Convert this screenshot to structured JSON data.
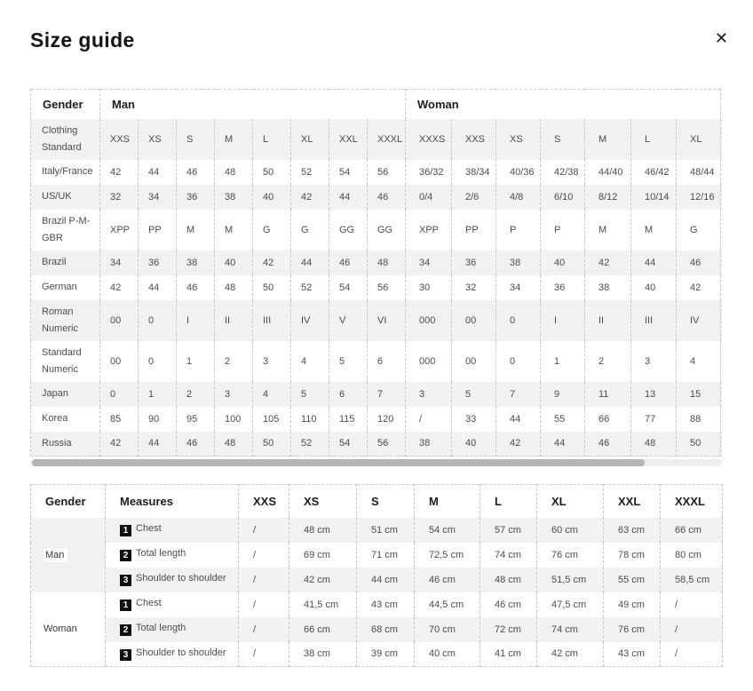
{
  "colors": {
    "row_shade": "#f1f1f1",
    "table_border": "#c9c9c9",
    "scrollbar_thumb": "#b5b5b5",
    "scrollbar_track": "#ededed",
    "badge_bg": "#111111",
    "text_primary": "#1d1d1d",
    "text_secondary": "#4c4c4c"
  },
  "modal": {
    "title": "Size guide",
    "close_icon": "✕"
  },
  "size_table": {
    "gender_header": "Gender",
    "man_header": "Man",
    "woman_header": "Woman",
    "standard_row_label": "Clothing Standard",
    "man_sizes": [
      "XXS",
      "XS",
      "S",
      "M",
      "L",
      "XL",
      "XXL",
      "XXXL"
    ],
    "woman_sizes": [
      "XXXS",
      "XXS",
      "XS",
      "S",
      "M",
      "L",
      "XL"
    ],
    "rows": [
      {
        "label": "Italy/France",
        "man": [
          "42",
          "44",
          "46",
          "48",
          "50",
          "52",
          "54",
          "56"
        ],
        "woman": [
          "36/32",
          "38/34",
          "40/36",
          "42/38",
          "44/40",
          "46/42",
          "48/44"
        ]
      },
      {
        "label": "US/UK",
        "man": [
          "32",
          "34",
          "36",
          "38",
          "40",
          "42",
          "44",
          "46"
        ],
        "woman": [
          "0/4",
          "2/6",
          "4/8",
          "6/10",
          "8/12",
          "10/14",
          "12/16"
        ]
      },
      {
        "label": "Brazil P-M-GBR",
        "man": [
          "XPP",
          "PP",
          "M",
          "M",
          "G",
          "G",
          "GG",
          "GG"
        ],
        "woman": [
          "XPP",
          "PP",
          "P",
          "P",
          "M",
          "M",
          "G"
        ]
      },
      {
        "label": "Brazil",
        "man": [
          "34",
          "36",
          "38",
          "40",
          "42",
          "44",
          "46",
          "48"
        ],
        "woman": [
          "34",
          "36",
          "38",
          "40",
          "42",
          "44",
          "46"
        ]
      },
      {
        "label": "German",
        "man": [
          "42",
          "44",
          "46",
          "48",
          "50",
          "52",
          "54",
          "56"
        ],
        "woman": [
          "30",
          "32",
          "34",
          "36",
          "38",
          "40",
          "42"
        ]
      },
      {
        "label": "Roman Numeric",
        "man": [
          "00",
          "0",
          "I",
          "II",
          "III",
          "IV",
          "V",
          "VI"
        ],
        "woman": [
          "000",
          "00",
          "0",
          "I",
          "II",
          "III",
          "IV"
        ]
      },
      {
        "label": "Standard Numeric",
        "man": [
          "00",
          "0",
          "1",
          "2",
          "3",
          "4",
          "5",
          "6"
        ],
        "woman": [
          "000",
          "00",
          "0",
          "1",
          "2",
          "3",
          "4"
        ]
      },
      {
        "label": "Japan",
        "man": [
          "0",
          "1",
          "2",
          "3",
          "4",
          "5",
          "6",
          "7"
        ],
        "woman": [
          "3",
          "5",
          "7",
          "9",
          "11",
          "13",
          "15"
        ]
      },
      {
        "label": "Korea",
        "man": [
          "85",
          "90",
          "95",
          "100",
          "105",
          "110",
          "115",
          "120"
        ],
        "woman": [
          "/",
          "33",
          "44",
          "55",
          "66",
          "77",
          "88"
        ]
      },
      {
        "label": "Russia",
        "man": [
          "42",
          "44",
          "46",
          "48",
          "50",
          "52",
          "54",
          "56"
        ],
        "woman": [
          "38",
          "40",
          "42",
          "44",
          "46",
          "48",
          "50"
        ]
      }
    ]
  },
  "measures_table": {
    "headers": [
      "Gender",
      "Measures",
      "XXS",
      "XS",
      "S",
      "M",
      "L",
      "XL",
      "XXL",
      "XXXL"
    ],
    "groups": [
      {
        "gender": "Man",
        "rows": [
          {
            "num": "1",
            "label": "Chest",
            "values": [
              "/",
              "48 cm",
              "51 cm",
              "54 cm",
              "57 cm",
              "60 cm",
              "63 cm",
              "66 cm"
            ]
          },
          {
            "num": "2",
            "label": "Total length",
            "values": [
              "/",
              "69 cm",
              "71 cm",
              "72,5 cm",
              "74 cm",
              "76 cm",
              "78 cm",
              "80 cm"
            ]
          },
          {
            "num": "3",
            "label": "Shoulder to shoulder",
            "values": [
              "/",
              "42 cm",
              "44 cm",
              "46 cm",
              "48 cm",
              "51,5 cm",
              "55 cm",
              "58,5 cm"
            ]
          }
        ]
      },
      {
        "gender": "Woman",
        "rows": [
          {
            "num": "1",
            "label": "Chest",
            "values": [
              "/",
              "41,5 cm",
              "43 cm",
              "44,5 cm",
              "46 cm",
              "47,5 cm",
              "49 cm",
              "/"
            ]
          },
          {
            "num": "2",
            "label": "Total length",
            "values": [
              "/",
              "66 cm",
              "68 cm",
              "70 cm",
              "72 cm",
              "74 cm",
              "76 cm",
              "/"
            ]
          },
          {
            "num": "3",
            "label": "Shoulder to shoulder",
            "values": [
              "/",
              "38 cm",
              "39 cm",
              "40 cm",
              "41 cm",
              "42 cm",
              "43 cm",
              "/"
            ]
          }
        ]
      }
    ]
  }
}
